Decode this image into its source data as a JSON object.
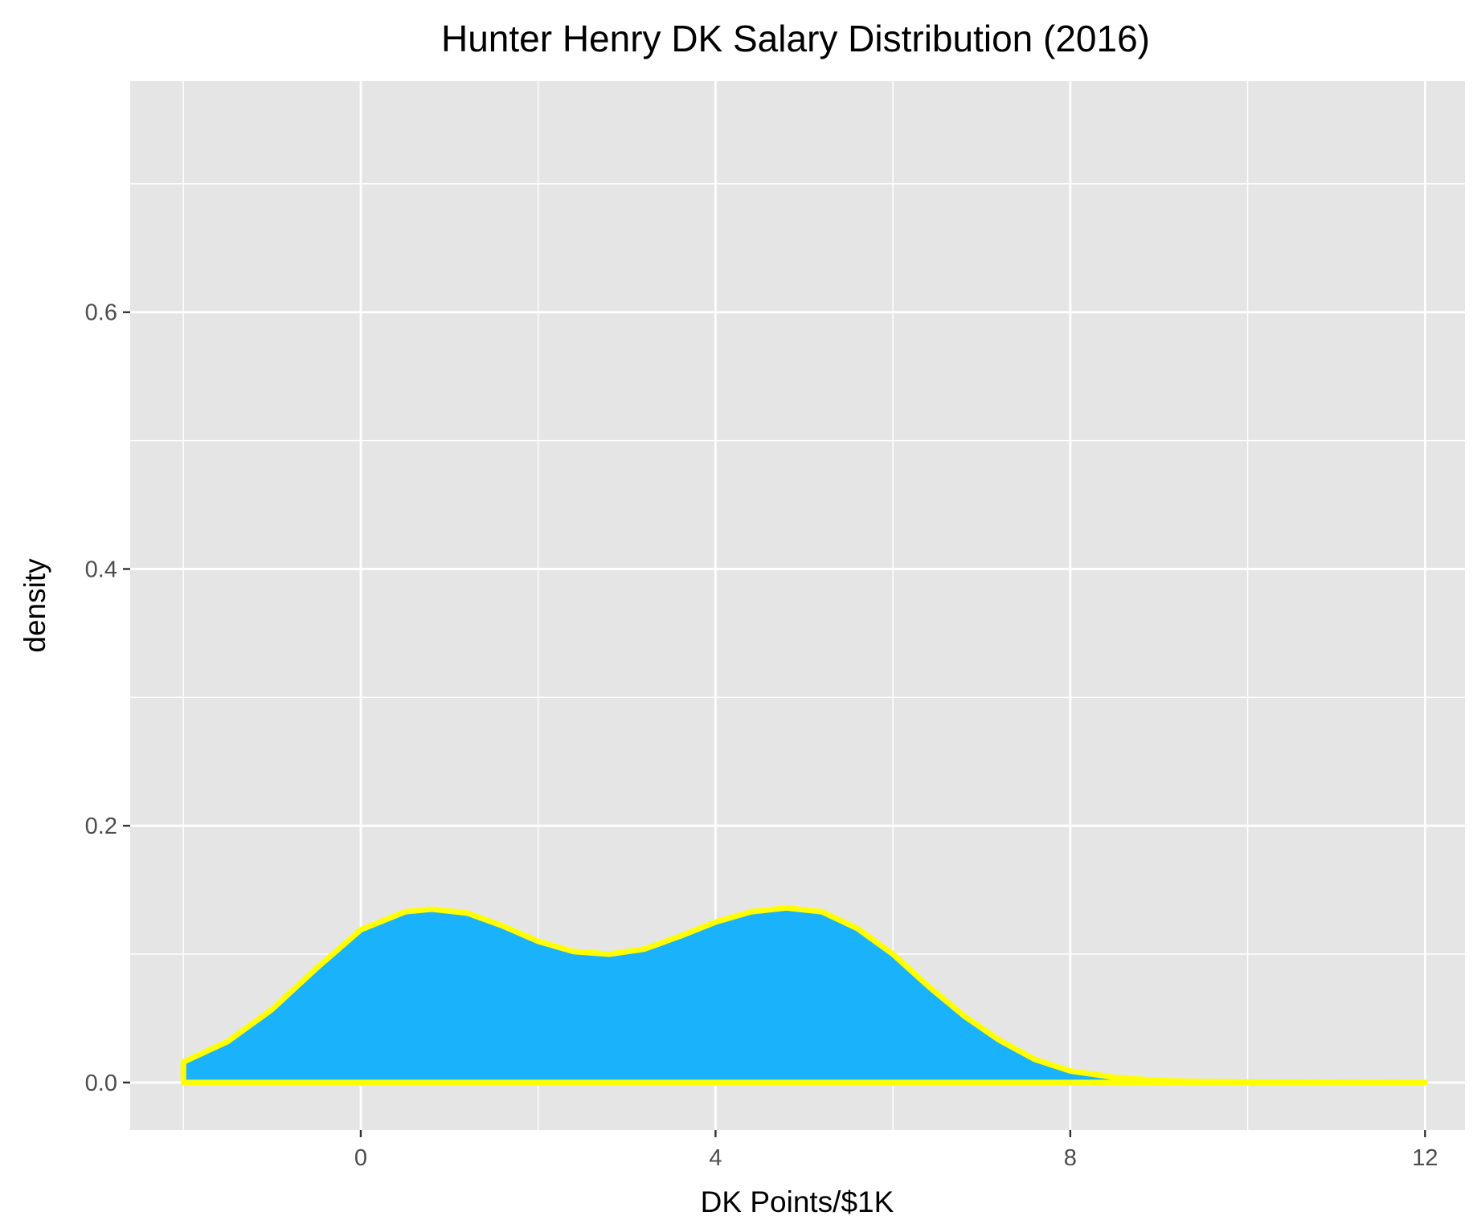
{
  "chart_data": {
    "type": "area",
    "title": "Hunter Henry DK Salary Distribution (2016)",
    "xlabel": "DK Points/$1K",
    "ylabel": "density",
    "xlim": [
      -2.6,
      12.45
    ],
    "ylim": [
      -0.037,
      0.78
    ],
    "x_ticks": [
      0,
      4,
      8,
      12
    ],
    "x_tick_labels": [
      "0",
      "4",
      "8",
      "12"
    ],
    "y_ticks": [
      0.0,
      0.2,
      0.4,
      0.6
    ],
    "y_tick_labels": [
      "0.0",
      "0.2",
      "0.4",
      "0.6"
    ],
    "x_minor_ticks": [
      -2,
      2,
      6,
      10
    ],
    "y_minor_ticks": [
      0.1,
      0.3,
      0.5,
      0.7
    ],
    "grid": true,
    "legend": "none",
    "colors": {
      "panel_background": "#e5e5e5",
      "grid": "#ffffff",
      "fill": "#19b2fb",
      "outline": "#ffff00",
      "tick_label": "#4d4d4d",
      "tick_mark": "#333333"
    },
    "series": [
      {
        "x": [
          -2.0,
          -1.5,
          -1.0,
          -0.5,
          0.0,
          0.5,
          0.8,
          1.2,
          1.6,
          2.0,
          2.4,
          2.8,
          3.2,
          3.6,
          4.0,
          4.4,
          4.8,
          5.2,
          5.6,
          6.0,
          6.4,
          6.8,
          7.2,
          7.6,
          8.0,
          8.5,
          9.0,
          9.5,
          10.0,
          11.0,
          12.0
        ],
        "y": [
          0.016,
          0.032,
          0.057,
          0.089,
          0.119,
          0.133,
          0.135,
          0.132,
          0.122,
          0.11,
          0.102,
          0.1,
          0.104,
          0.114,
          0.125,
          0.133,
          0.136,
          0.133,
          0.12,
          0.1,
          0.075,
          0.052,
          0.033,
          0.018,
          0.009,
          0.004,
          0.0015,
          0.0007,
          0.0003,
          0.0001,
          0.0
        ]
      }
    ]
  }
}
